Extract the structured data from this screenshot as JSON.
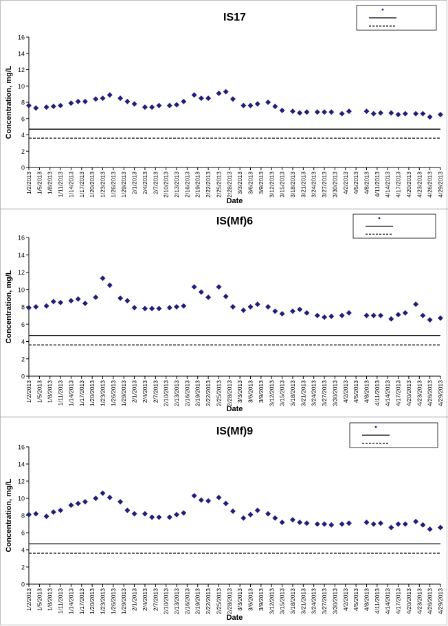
{
  "chart_data": [
    {
      "type": "scatter",
      "title": "IS17",
      "xlabel": "Date",
      "ylabel": "Concentration, mg/L",
      "ylim": [
        0,
        16
      ],
      "yticks": [
        0,
        2,
        4,
        6,
        8,
        10,
        12,
        14,
        16
      ],
      "grid": false,
      "legend": "top-right",
      "x_start": "1/2/2013",
      "x_end": "4/29/2013",
      "tick_labels": [
        "1/2/2013",
        "1/5/2013",
        "1/8/2013",
        "1/11/2013",
        "1/14/2013",
        "1/17/2013",
        "1/20/2013",
        "1/23/2013",
        "1/26/2013",
        "1/29/2013",
        "2/1/2013",
        "2/4/2013",
        "2/7/2013",
        "2/10/2013",
        "2/13/2013",
        "2/16/2013",
        "2/19/2013",
        "2/22/2013",
        "2/25/2013",
        "2/28/2013",
        "3/3/2013",
        "3/6/2013",
        "3/9/2013",
        "3/12/2013",
        "3/15/2013",
        "3/18/2013",
        "3/21/2013",
        "3/24/2013",
        "3/27/2013",
        "3/30/2013",
        "4/2/2013",
        "4/5/2013",
        "4/8/2013",
        "4/11/2013",
        "4/14/2013",
        "4/17/2013",
        "4/20/2013",
        "4/23/2013",
        "4/26/2013",
        "4/29/2013"
      ],
      "series": [
        {
          "name": "",
          "kind": "marker",
          "color": "#1f1f7a",
          "points": [
            [
              "1/2/2013",
              7.6
            ],
            [
              "1/4/2013",
              7.3
            ],
            [
              "1/7/2013",
              7.4
            ],
            [
              "1/9/2013",
              7.5
            ],
            [
              "1/11/2013",
              7.6
            ],
            [
              "1/14/2013",
              7.9
            ],
            [
              "1/16/2013",
              8.1
            ],
            [
              "1/18/2013",
              8.1
            ],
            [
              "1/21/2013",
              8.4
            ],
            [
              "1/23/2013",
              8.5
            ],
            [
              "1/25/2013",
              8.9
            ],
            [
              "1/28/2013",
              8.5
            ],
            [
              "1/30/2013",
              8.1
            ],
            [
              "2/1/2013",
              7.8
            ],
            [
              "2/4/2013",
              7.4
            ],
            [
              "2/6/2013",
              7.4
            ],
            [
              "2/8/2013",
              7.6
            ],
            [
              "2/11/2013",
              7.6
            ],
            [
              "2/13/2013",
              7.7
            ],
            [
              "2/15/2013",
              8.1
            ],
            [
              "2/18/2013",
              8.9
            ],
            [
              "2/20/2013",
              8.5
            ],
            [
              "2/22/2013",
              8.5
            ],
            [
              "2/25/2013",
              9.1
            ],
            [
              "2/27/2013",
              9.3
            ],
            [
              "3/1/2013",
              8.4
            ],
            [
              "3/4/2013",
              7.6
            ],
            [
              "3/6/2013",
              7.6
            ],
            [
              "3/8/2013",
              7.8
            ],
            [
              "3/11/2013",
              8.0
            ],
            [
              "3/13/2013",
              7.5
            ],
            [
              "3/15/2013",
              7.0
            ],
            [
              "3/18/2013",
              6.9
            ],
            [
              "3/20/2013",
              6.7
            ],
            [
              "3/22/2013",
              6.8
            ],
            [
              "3/25/2013",
              6.8
            ],
            [
              "3/27/2013",
              6.8
            ],
            [
              "3/29/2013",
              6.8
            ],
            [
              "4/1/2013",
              6.6
            ],
            [
              "4/3/2013",
              6.9
            ],
            [
              "4/8/2013",
              6.9
            ],
            [
              "4/10/2013",
              6.6
            ],
            [
              "4/12/2013",
              6.7
            ],
            [
              "4/15/2013",
              6.7
            ],
            [
              "4/17/2013",
              6.5
            ],
            [
              "4/19/2013",
              6.6
            ],
            [
              "4/22/2013",
              6.6
            ],
            [
              "4/24/2013",
              6.6
            ],
            [
              "4/26/2013",
              6.2
            ],
            [
              "4/29/2013",
              6.5
            ]
          ]
        },
        {
          "name": "",
          "kind": "solid",
          "color": "#000000",
          "value": 4.7
        },
        {
          "name": "",
          "kind": "dashed",
          "color": "#000000",
          "value": 3.6
        }
      ]
    },
    {
      "type": "scatter",
      "title": "IS(Mf)6",
      "xlabel": "Date",
      "ylabel": "Concentration, mg/L",
      "ylim": [
        0,
        16
      ],
      "yticks": [
        0,
        2,
        4,
        6,
        8,
        10,
        12,
        14,
        16
      ],
      "grid": false,
      "legend": "top-right",
      "x_start": "1/2/2013",
      "x_end": "4/29/2013",
      "tick_labels": [
        "1/2/2013",
        "1/5/2013",
        "1/8/2013",
        "1/11/2013",
        "1/14/2013",
        "1/17/2013",
        "1/20/2013",
        "1/23/2013",
        "1/26/2013",
        "1/29/2013",
        "2/1/2013",
        "2/4/2013",
        "2/7/2013",
        "2/10/2013",
        "2/13/2013",
        "2/16/2013",
        "2/19/2013",
        "2/22/2013",
        "2/25/2013",
        "2/28/2013",
        "3/3/2013",
        "3/6/2013",
        "3/9/2013",
        "3/12/2013",
        "3/15/2013",
        "3/18/2013",
        "3/21/2013",
        "3/24/2013",
        "3/27/2013",
        "3/30/2013",
        "4/2/2013",
        "4/5/2013",
        "4/8/2013",
        "4/11/2013",
        "4/14/2013",
        "4/17/2013",
        "4/20/2013",
        "4/23/2013",
        "4/26/2013",
        "4/29/2013"
      ],
      "series": [
        {
          "name": "",
          "kind": "marker",
          "color": "#1f1f7a",
          "points": [
            [
              "1/2/2013",
              7.9
            ],
            [
              "1/4/2013",
              8.0
            ],
            [
              "1/7/2013",
              8.1
            ],
            [
              "1/9/2013",
              8.6
            ],
            [
              "1/11/2013",
              8.5
            ],
            [
              "1/14/2013",
              8.7
            ],
            [
              "1/16/2013",
              8.9
            ],
            [
              "1/18/2013",
              8.4
            ],
            [
              "1/21/2013",
              9.1
            ],
            [
              "1/23/2013",
              11.3
            ],
            [
              "1/25/2013",
              10.5
            ],
            [
              "1/28/2013",
              9.0
            ],
            [
              "1/30/2013",
              8.7
            ],
            [
              "2/1/2013",
              7.9
            ],
            [
              "2/4/2013",
              7.8
            ],
            [
              "2/6/2013",
              7.8
            ],
            [
              "2/8/2013",
              7.8
            ],
            [
              "2/11/2013",
              7.9
            ],
            [
              "2/13/2013",
              8.0
            ],
            [
              "2/15/2013",
              8.1
            ],
            [
              "2/18/2013",
              10.3
            ],
            [
              "2/20/2013",
              9.7
            ],
            [
              "2/22/2013",
              9.1
            ],
            [
              "2/25/2013",
              10.3
            ],
            [
              "2/27/2013",
              9.2
            ],
            [
              "3/1/2013",
              8.0
            ],
            [
              "3/4/2013",
              7.6
            ],
            [
              "3/6/2013",
              8.0
            ],
            [
              "3/8/2013",
              8.3
            ],
            [
              "3/11/2013",
              8.0
            ],
            [
              "3/13/2013",
              7.5
            ],
            [
              "3/15/2013",
              7.2
            ],
            [
              "3/18/2013",
              7.5
            ],
            [
              "3/20/2013",
              7.7
            ],
            [
              "3/22/2013",
              7.3
            ],
            [
              "3/25/2013",
              7.0
            ],
            [
              "3/27/2013",
              6.8
            ],
            [
              "3/29/2013",
              6.9
            ],
            [
              "4/1/2013",
              7.0
            ],
            [
              "4/3/2013",
              7.3
            ],
            [
              "4/8/2013",
              7.0
            ],
            [
              "4/10/2013",
              7.0
            ],
            [
              "4/12/2013",
              7.0
            ],
            [
              "4/15/2013",
              6.6
            ],
            [
              "4/17/2013",
              7.1
            ],
            [
              "4/19/2013",
              7.3
            ],
            [
              "4/22/2013",
              8.3
            ],
            [
              "4/24/2013",
              7.0
            ],
            [
              "4/26/2013",
              6.5
            ],
            [
              "4/29/2013",
              6.7
            ]
          ]
        },
        {
          "name": "",
          "kind": "solid",
          "color": "#000000",
          "value": 4.7
        },
        {
          "name": "",
          "kind": "dashed",
          "color": "#000000",
          "value": 3.6
        }
      ]
    },
    {
      "type": "scatter",
      "title": "IS(Mf)9",
      "xlabel": "Date",
      "ylabel": "Concentration, mg/L",
      "ylim": [
        0,
        16
      ],
      "yticks": [
        0,
        2,
        4,
        6,
        8,
        10,
        12,
        14,
        16
      ],
      "grid": false,
      "legend": "top-right",
      "x_start": "1/2/2013",
      "x_end": "4/29/2013",
      "tick_labels": [
        "1/2/2013",
        "1/5/2013",
        "1/8/2013",
        "1/11/2013",
        "1/14/2013",
        "1/17/2013",
        "1/20/2013",
        "1/23/2013",
        "1/26/2013",
        "1/29/2013",
        "2/1/2013",
        "2/4/2013",
        "2/7/2013",
        "2/10/2013",
        "2/13/2013",
        "2/16/2013",
        "2/19/2013",
        "2/22/2013",
        "2/25/2013",
        "2/28/2013",
        "3/3/2013",
        "3/6/2013",
        "3/9/2013",
        "3/12/2013",
        "3/15/2013",
        "3/18/2013",
        "3/21/2013",
        "3/24/2013",
        "3/27/2013",
        "3/30/2013",
        "4/2/2013",
        "4/5/2013",
        "4/8/2013",
        "4/11/2013",
        "4/14/2013",
        "4/17/2013",
        "4/20/2013",
        "4/23/2013",
        "4/26/2013",
        "4/29/2013"
      ],
      "series": [
        {
          "name": "",
          "kind": "marker",
          "color": "#1f1f7a",
          "points": [
            [
              "1/2/2013",
              8.1
            ],
            [
              "1/4/2013",
              8.2
            ],
            [
              "1/7/2013",
              7.9
            ],
            [
              "1/9/2013",
              8.4
            ],
            [
              "1/11/2013",
              8.6
            ],
            [
              "1/14/2013",
              9.2
            ],
            [
              "1/16/2013",
              9.4
            ],
            [
              "1/18/2013",
              9.6
            ],
            [
              "1/21/2013",
              10.0
            ],
            [
              "1/23/2013",
              10.6
            ],
            [
              "1/25/2013",
              10.1
            ],
            [
              "1/28/2013",
              9.6
            ],
            [
              "1/30/2013",
              8.6
            ],
            [
              "2/1/2013",
              8.2
            ],
            [
              "2/4/2013",
              8.2
            ],
            [
              "2/6/2013",
              7.8
            ],
            [
              "2/8/2013",
              7.8
            ],
            [
              "2/11/2013",
              7.8
            ],
            [
              "2/13/2013",
              8.1
            ],
            [
              "2/15/2013",
              8.3
            ],
            [
              "2/18/2013",
              10.3
            ],
            [
              "2/20/2013",
              9.8
            ],
            [
              "2/22/2013",
              9.7
            ],
            [
              "2/25/2013",
              10.1
            ],
            [
              "2/27/2013",
              9.4
            ],
            [
              "3/1/2013",
              8.5
            ],
            [
              "3/4/2013",
              7.7
            ],
            [
              "3/6/2013",
              8.1
            ],
            [
              "3/8/2013",
              8.6
            ],
            [
              "3/11/2013",
              8.2
            ],
            [
              "3/13/2013",
              7.7
            ],
            [
              "3/15/2013",
              7.2
            ],
            [
              "3/18/2013",
              7.5
            ],
            [
              "3/20/2013",
              7.2
            ],
            [
              "3/22/2013",
              7.1
            ],
            [
              "3/25/2013",
              7.0
            ],
            [
              "3/27/2013",
              7.0
            ],
            [
              "3/29/2013",
              6.9
            ],
            [
              "4/1/2013",
              7.0
            ],
            [
              "4/3/2013",
              7.1
            ],
            [
              "4/8/2013",
              7.2
            ],
            [
              "4/10/2013",
              7.0
            ],
            [
              "4/12/2013",
              7.1
            ],
            [
              "4/15/2013",
              6.6
            ],
            [
              "4/17/2013",
              7.0
            ],
            [
              "4/19/2013",
              7.0
            ],
            [
              "4/22/2013",
              7.3
            ],
            [
              "4/24/2013",
              6.9
            ],
            [
              "4/26/2013",
              6.4
            ],
            [
              "4/29/2013",
              6.6
            ]
          ]
        },
        {
          "name": "",
          "kind": "solid",
          "color": "#000000",
          "value": 4.7
        },
        {
          "name": "",
          "kind": "dashed",
          "color": "#000000",
          "value": 3.6
        }
      ]
    }
  ]
}
